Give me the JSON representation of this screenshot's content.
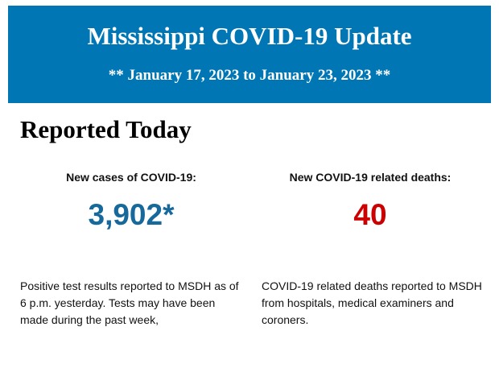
{
  "header": {
    "title": "Mississippi COVID-19 Update",
    "date_range": "** January 17, 2023 to January 23, 2023 **"
  },
  "section_title": "Reported Today",
  "stats": [
    {
      "label": "New cases of COVID-19:",
      "value": "3,902*",
      "color": "#17699c",
      "note": "Positive test results reported to MSDH as of 6 p.m. yesterday. Tests may have been made during the past week,"
    },
    {
      "label": "New COVID-19 related deaths:",
      "value": "40",
      "color": "#cc0000",
      "note": "COVID-19 related deaths reported to MSDH from hospitals, medical examiners and coroners."
    }
  ],
  "colors": {
    "banner": "#0076b4"
  }
}
